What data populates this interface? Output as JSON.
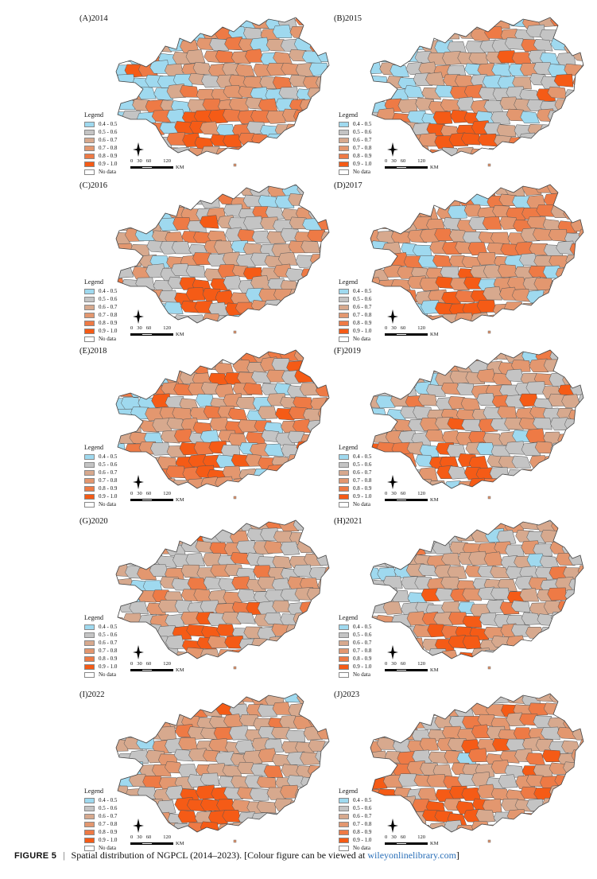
{
  "figure": {
    "label": "FIGURE 5",
    "separator": "|",
    "caption": "Spatial distribution of NGPCL (2014–2023). [Colour figure can be viewed at ",
    "link": "wileyonlinelibrary.com",
    "caption_end": "]"
  },
  "legend": {
    "title": "Legend",
    "classes": [
      {
        "label": "0.4 - 0.5",
        "color": "#9fd9ef"
      },
      {
        "label": "0.5 - 0.6",
        "color": "#c4c4c4"
      },
      {
        "label": "0.6 - 0.7",
        "color": "#d7a98e"
      },
      {
        "label": "0.7 - 0.8",
        "color": "#e3976f"
      },
      {
        "label": "0.8 - 0.9",
        "color": "#ee7a45"
      },
      {
        "label": "0.9 - 1.0",
        "color": "#f55b16"
      },
      {
        "label": "No data",
        "color": "#ffffff"
      }
    ]
  },
  "scale_bar": {
    "ticks": [
      "0",
      "30",
      "60",
      "120"
    ],
    "unit": "KM"
  },
  "panels": [
    {
      "title": "(A)2014",
      "weights": [
        0.24,
        0.12,
        0.17,
        0.3,
        0.14,
        0.03
      ]
    },
    {
      "title": "(B)2015",
      "weights": [
        0.15,
        0.3,
        0.25,
        0.2,
        0.08,
        0.02
      ]
    },
    {
      "title": "(C)2016",
      "weights": [
        0.12,
        0.3,
        0.28,
        0.2,
        0.08,
        0.02
      ]
    },
    {
      "title": "(D)2017",
      "weights": [
        0.08,
        0.06,
        0.2,
        0.48,
        0.15,
        0.03
      ]
    },
    {
      "title": "(E)2018",
      "weights": [
        0.12,
        0.18,
        0.25,
        0.3,
        0.12,
        0.03
      ]
    },
    {
      "title": "(F)2019",
      "weights": [
        0.06,
        0.38,
        0.26,
        0.2,
        0.08,
        0.02
      ]
    },
    {
      "title": "(G)2020",
      "weights": [
        0.05,
        0.38,
        0.28,
        0.2,
        0.07,
        0.02
      ]
    },
    {
      "title": "(H)2021",
      "weights": [
        0.06,
        0.36,
        0.28,
        0.2,
        0.08,
        0.02
      ]
    },
    {
      "title": "(I)2022",
      "weights": [
        0.04,
        0.28,
        0.36,
        0.22,
        0.08,
        0.02
      ]
    },
    {
      "title": "(J)2023",
      "weights": [
        0.02,
        0.16,
        0.34,
        0.34,
        0.11,
        0.03
      ]
    }
  ]
}
